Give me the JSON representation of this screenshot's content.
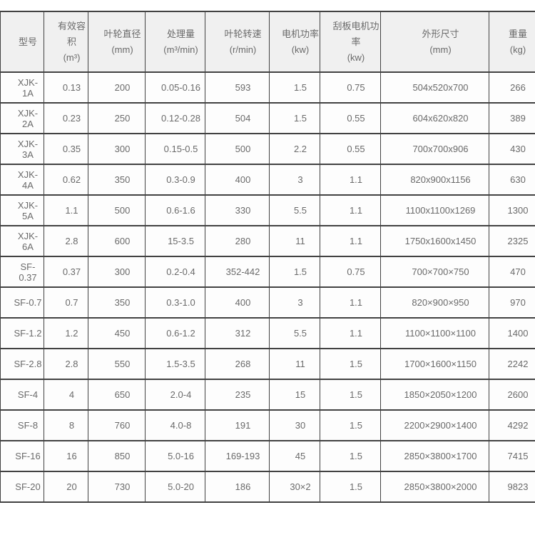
{
  "colors": {
    "page_background": "#ffffff",
    "header_background": "#f0f0f0",
    "cell_background": "#fdfdfd",
    "grid_border": "#424242",
    "text": "#6a6a6a"
  },
  "table": {
    "columns": [
      {
        "label": "型号",
        "unit": ""
      },
      {
        "label": "有效容积",
        "unit": "(m³)"
      },
      {
        "label": "叶轮直径",
        "unit": "(mm)"
      },
      {
        "label": "处理量",
        "unit": "(m³/min)"
      },
      {
        "label": "叶轮转速",
        "unit": "(r/min)"
      },
      {
        "label": "电机功率",
        "unit": "(kw)"
      },
      {
        "label": "刮板电机功率",
        "unit": "(kw)"
      },
      {
        "label": "外形尺寸",
        "unit": "(mm)"
      },
      {
        "label": "重量",
        "unit": "(kg)"
      }
    ],
    "rows": [
      [
        "XJK-1A",
        "0.13",
        "200",
        "0.05-0.16",
        "593",
        "1.5",
        "0.75",
        "504x520x700",
        "266"
      ],
      [
        "XJK-2A",
        "0.23",
        "250",
        "0.12-0.28",
        "504",
        "1.5",
        "0.55",
        "604x620x820",
        "389"
      ],
      [
        "XJK-3A",
        "0.35",
        "300",
        "0.15-0.5",
        "500",
        "2.2",
        "0.55",
        "700x700x906",
        "430"
      ],
      [
        "XJK-4A",
        "0.62",
        "350",
        "0.3-0.9",
        "400",
        "3",
        "1.1",
        "820x900x1156",
        "630"
      ],
      [
        "XJK-5A",
        "1.1",
        "500",
        "0.6-1.6",
        "330",
        "5.5",
        "1.1",
        "1100x1100x1269",
        "1300"
      ],
      [
        "XJK-6A",
        "2.8",
        "600",
        "15-3.5",
        "280",
        "11",
        "1.1",
        "1750x1600x1450",
        "2325"
      ],
      [
        "SF-0.37",
        "0.37",
        "300",
        "0.2-0.4",
        "352-442",
        "1.5",
        "0.75",
        "700×700×750",
        "470"
      ],
      [
        "SF-0.7",
        "0.7",
        "350",
        "0.3-1.0",
        "400",
        "3",
        "1.1",
        "820×900×950",
        "970"
      ],
      [
        "SF-1.2",
        "1.2",
        "450",
        "0.6-1.2",
        "312",
        "5.5",
        "1.1",
        "1100×1100×1100",
        "1400"
      ],
      [
        "SF-2.8",
        "2.8",
        "550",
        "1.5-3.5",
        "268",
        "11",
        "1.5",
        "1700×1600×1150",
        "2242"
      ],
      [
        "SF-4",
        "4",
        "650",
        "2.0-4",
        "235",
        "15",
        "1.5",
        "1850×2050×1200",
        "2600"
      ],
      [
        "SF-8",
        "8",
        "760",
        "4.0-8",
        "191",
        "30",
        "1.5",
        "2200×2900×1400",
        "4292"
      ],
      [
        "SF-16",
        "16",
        "850",
        "5.0-16",
        "169-193",
        "45",
        "1.5",
        "2850×3800×1700",
        "7415"
      ],
      [
        "SF-20",
        "20",
        "730",
        "5.0-20",
        "186",
        "30×2",
        "1.5",
        "2850×3800×2000",
        "9823"
      ]
    ]
  }
}
